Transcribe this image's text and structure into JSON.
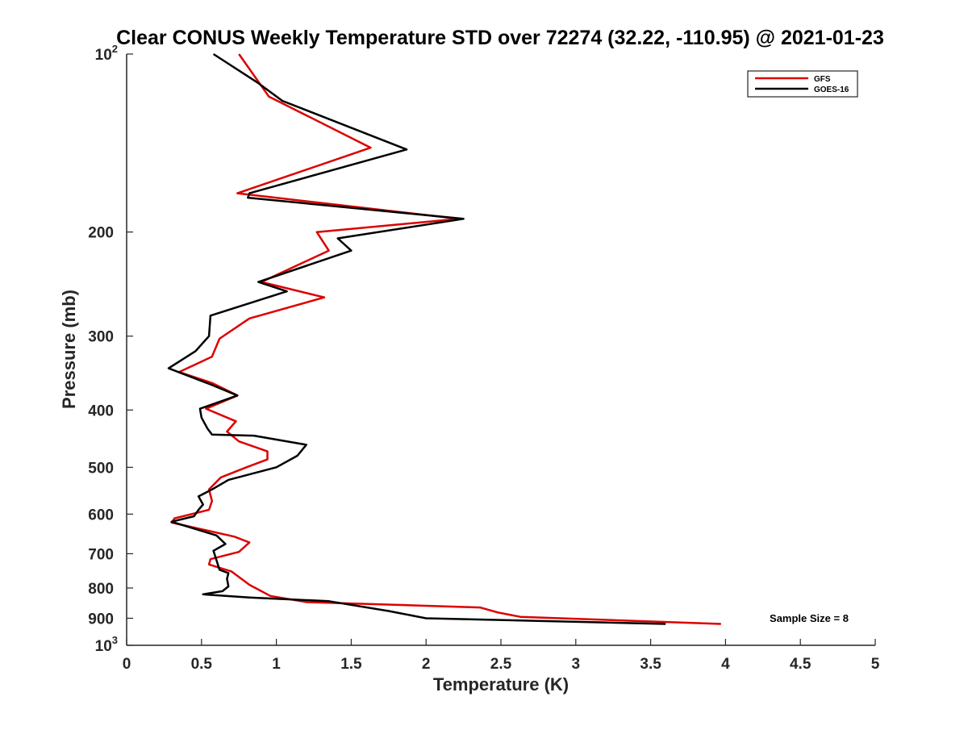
{
  "chart_data": {
    "type": "line",
    "title": "Clear CONUS Weekly Temperature STD over 72274 (32.22, -110.95) @ 2021-01-23",
    "xlabel": "Temperature (K)",
    "ylabel": "Pressure (mb)",
    "xlim": [
      0,
      5
    ],
    "ylim": [
      100,
      1000
    ],
    "y_scale": "log",
    "y_reversed": true,
    "x_ticks": [
      0,
      0.5,
      1,
      1.5,
      2,
      2.5,
      3,
      3.5,
      4,
      4.5,
      5
    ],
    "x_tick_labels": [
      "0",
      "0.5",
      "1",
      "1.5",
      "2",
      "2.5",
      "3",
      "3.5",
      "4",
      "4.5",
      "5"
    ],
    "y_ticks": [
      200,
      300,
      400,
      500,
      600,
      700,
      800,
      900
    ],
    "y_tick_labels": [
      "200",
      "300",
      "400",
      "500",
      "600",
      "700",
      "800",
      "900"
    ],
    "y_exp_ticks": [
      {
        "value": 100,
        "base": "10",
        "exp": "2"
      },
      {
        "value": 1000,
        "base": "10",
        "exp": "3"
      }
    ],
    "grid": false,
    "legend_position": "top-right",
    "annotation": "Sample Size = 8",
    "series": [
      {
        "name": "GFS",
        "color": "#dd0000",
        "x": [
          0.75,
          0.95,
          1.63,
          0.74,
          2.22,
          1.27,
          1.35,
          0.9,
          1.32,
          0.82,
          0.62,
          0.57,
          0.35,
          0.57,
          0.74,
          0.53,
          0.73,
          0.67,
          0.75,
          0.94,
          0.94,
          0.8,
          0.63,
          0.55,
          0.57,
          0.55,
          0.32,
          0.3,
          0.72,
          0.82,
          0.75,
          0.56,
          0.55,
          0.7,
          0.82,
          0.9,
          0.96,
          1.2,
          2.36,
          2.48,
          2.63,
          3.97
        ],
        "y": [
          100,
          118,
          144,
          172,
          190,
          200,
          215,
          243,
          258,
          280,
          303,
          325,
          345,
          360,
          378,
          398,
          418,
          435,
          452,
          470,
          485,
          500,
          520,
          545,
          570,
          590,
          610,
          620,
          655,
          670,
          695,
          715,
          730,
          750,
          790,
          810,
          825,
          845,
          863,
          880,
          895,
          920
        ]
      },
      {
        "name": "GOES-16",
        "color": "#000000",
        "x": [
          0.58,
          0.88,
          1.04,
          1.87,
          0.82,
          0.81,
          2.25,
          1.41,
          1.5,
          0.88,
          1.07,
          0.56,
          0.55,
          0.46,
          0.28,
          0.56,
          0.74,
          0.49,
          0.5,
          0.54,
          0.57,
          0.85,
          1.2,
          1.14,
          1.0,
          0.68,
          0.57,
          0.48,
          0.51,
          0.48,
          0.45,
          0.3,
          0.6,
          0.66,
          0.58,
          0.62,
          0.68,
          0.67,
          0.68,
          0.64,
          0.51,
          0.82,
          1.35,
          1.75,
          2.0,
          3.6
        ],
        "y": [
          100,
          112,
          120,
          145,
          172,
          175,
          190,
          205,
          215,
          243,
          252,
          277,
          300,
          318,
          340,
          362,
          378,
          398,
          412,
          430,
          440,
          442,
          458,
          478,
          500,
          525,
          545,
          560,
          578,
          590,
          605,
          618,
          652,
          674,
          692,
          745,
          755,
          772,
          795,
          810,
          820,
          830,
          842,
          875,
          900,
          920
        ]
      }
    ]
  }
}
